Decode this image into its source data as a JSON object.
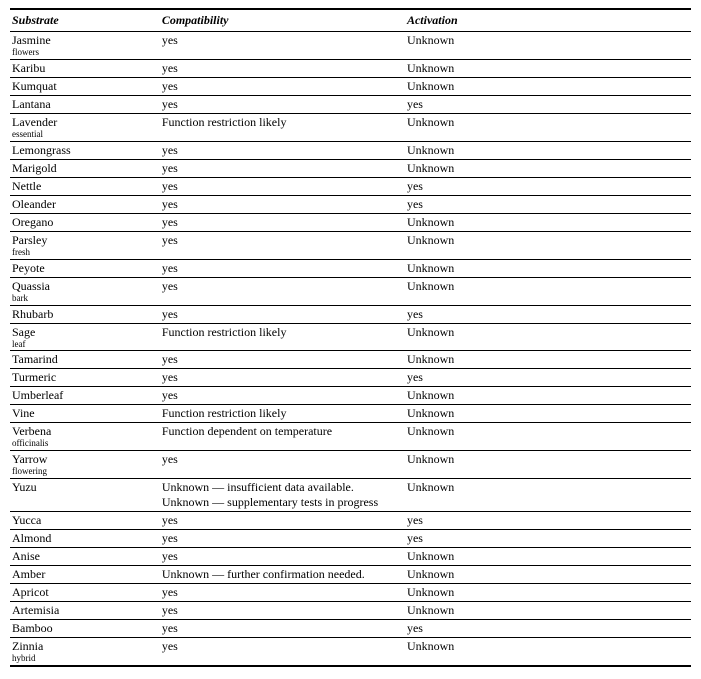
{
  "table": {
    "columns": [
      "Substrate",
      "Compatibility",
      "Activation"
    ],
    "rows": [
      {
        "name": "Jasmine",
        "name_sub": "flowers",
        "comp": "yes",
        "act": "Unknown"
      },
      {
        "name": "Karibu",
        "name_sub": null,
        "comp": "yes",
        "act": "Unknown"
      },
      {
        "name": "Kumquat",
        "name_sub": null,
        "comp": "yes",
        "act": "Unknown"
      },
      {
        "name": "Lantana",
        "name_sub": null,
        "comp": "yes",
        "act": "yes"
      },
      {
        "name": "Lavender",
        "name_sub": "essential",
        "comp": "Function restriction likely",
        "act": "Unknown"
      },
      {
        "name": "Lemongrass",
        "name_sub": null,
        "comp": "yes",
        "act": "Unknown"
      },
      {
        "name": "Marigold",
        "name_sub": null,
        "comp": "yes",
        "act": "Unknown"
      },
      {
        "name": "Nettle",
        "name_sub": null,
        "comp": "yes",
        "act": "yes"
      },
      {
        "name": "Oleander",
        "name_sub": null,
        "comp": "yes",
        "act": "yes"
      },
      {
        "name": "Oregano",
        "name_sub": null,
        "comp": "yes",
        "act": "Unknown"
      },
      {
        "name": "Parsley",
        "name_sub": "fresh",
        "comp": "yes",
        "act": "Unknown"
      },
      {
        "name": "Peyote",
        "name_sub": null,
        "comp": "yes",
        "act": "Unknown"
      },
      {
        "name": "Quassia",
        "name_sub": "bark",
        "comp": "yes",
        "act": "Unknown"
      },
      {
        "name": "Rhubarb",
        "name_sub": null,
        "comp": "yes",
        "act": "yes"
      },
      {
        "name": "Sage",
        "name_sub": "leaf",
        "comp": "Function restriction likely",
        "act": "Unknown"
      },
      {
        "name": "Tamarind",
        "name_sub": null,
        "comp": "yes",
        "act": "Unknown"
      },
      {
        "name": "Turmeric",
        "name_sub": null,
        "comp": "yes",
        "act": "yes"
      },
      {
        "name": "Umberleaf",
        "name_sub": null,
        "comp": "yes",
        "act": "Unknown"
      },
      {
        "name": "Vine",
        "name_sub": null,
        "comp": "Function restriction likely",
        "act": "Unknown"
      },
      {
        "name": "Verbena",
        "name_sub": "officinalis",
        "comp": "Function dependent on temperature",
        "act": "Unknown"
      },
      {
        "name": "Yarrow",
        "name_sub": "flowering",
        "comp": "yes",
        "act": "Unknown"
      },
      {
        "name": "Yuzu",
        "name_sub": null,
        "comp": "Unknown — insufficient data available.\nUnknown — supplementary tests in progress",
        "act": "Unknown"
      },
      {
        "name": "Yucca",
        "name_sub": null,
        "comp": "yes",
        "act": "yes"
      },
      {
        "name": "Almond",
        "name_sub": null,
        "comp": "yes",
        "act": "yes"
      },
      {
        "name": "Anise",
        "name_sub": null,
        "comp": "yes",
        "act": "Unknown"
      },
      {
        "name": "Amber",
        "name_sub": null,
        "comp": "Unknown — further confirmation needed.",
        "act": "Unknown"
      },
      {
        "name": "Apricot",
        "name_sub": null,
        "comp": "yes",
        "act": "Unknown"
      },
      {
        "name": "Artemisia",
        "name_sub": null,
        "comp": "yes",
        "act": "Unknown"
      },
      {
        "name": "Bamboo",
        "name_sub": null,
        "comp": "yes",
        "act": "yes"
      },
      {
        "name": "Zinnia",
        "name_sub": "hybrid",
        "comp": "yes",
        "act": "Unknown"
      }
    ],
    "style": {
      "font_family": "Times New Roman",
      "header_fontsize": 12,
      "body_fontsize": 12,
      "sub_fontsize": 9,
      "border_color": "#000000",
      "background_color": "#ffffff",
      "top_rule_width": 2,
      "header_rule_width": 1,
      "row_rule_width": 1,
      "bottom_rule_width": 2
    }
  }
}
